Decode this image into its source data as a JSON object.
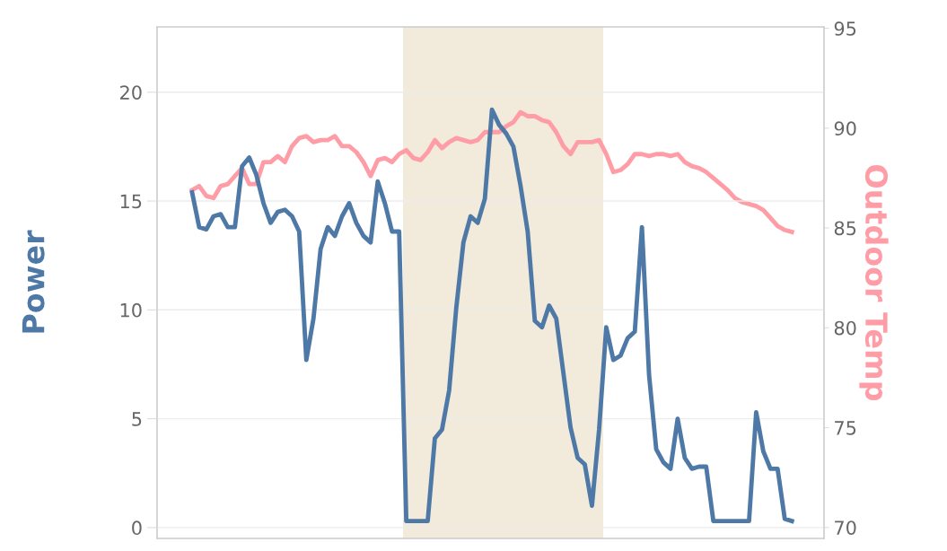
{
  "chart_data": {
    "type": "line",
    "ylabel": "Power",
    "y2label": "Outdoor Temp",
    "categories": [
      null,
      null,
      null,
      null,
      null,
      null,
      null,
      null,
      null,
      null,
      null,
      null,
      null,
      null,
      null,
      null,
      null,
      null,
      null,
      null,
      null,
      null,
      null,
      null,
      null,
      null,
      null,
      null,
      null,
      null,
      null,
      null,
      null,
      null,
      null,
      null,
      null,
      null,
      null,
      null,
      null,
      null,
      null,
      null,
      null,
      null,
      null,
      null,
      null,
      null,
      null,
      null,
      null,
      null,
      null,
      null,
      null,
      null,
      null,
      null,
      null,
      null,
      null,
      null,
      null,
      null,
      null,
      null,
      null,
      null,
      null,
      null,
      null,
      null,
      null,
      null,
      null,
      null,
      null,
      null,
      null,
      null,
      null,
      null,
      null
    ],
    "series": [
      {
        "color": "#4e79a7",
        "values": [
          15.4,
          13.8,
          13.7,
          14.3,
          14.4,
          13.8,
          13.8,
          16.6,
          17.0,
          16.2,
          14.9,
          14.0,
          14.5,
          14.6,
          14.3,
          13.6,
          7.7,
          9.6,
          12.8,
          13.8,
          13.4,
          14.3,
          14.9,
          14.0,
          13.4,
          13.1,
          15.9,
          14.9,
          13.6,
          13.6,
          0.3,
          0.3,
          0.3,
          0.3,
          4.1,
          4.5,
          6.3,
          10.1,
          13.1,
          14.3,
          14.0,
          15.1,
          19.2,
          18.5,
          18.1,
          17.5,
          15.7,
          13.6,
          9.5,
          9.2,
          10.2,
          9.6,
          7.1,
          4.6,
          3.2,
          2.9,
          1.0,
          4.5,
          9.2,
          7.7,
          7.9,
          8.7,
          9.0,
          13.8,
          7.0,
          3.6,
          3.0,
          2.7,
          5.0,
          3.2,
          2.7,
          2.8,
          2.8,
          0.3,
          0.3,
          0.3,
          0.3,
          0.3,
          0.3,
          5.3,
          3.5,
          2.7,
          2.7,
          0.4,
          0.3
        ]
      },
      {
        "color": "#ff9da7",
        "axis": "y2",
        "values": [
          86.9,
          87.1,
          86.6,
          86.5,
          87.1,
          87.2,
          87.6,
          88.0,
          87.2,
          87.2,
          88.3,
          88.3,
          88.6,
          88.3,
          89.1,
          89.5,
          89.6,
          89.3,
          89.4,
          89.4,
          89.6,
          89.1,
          89.1,
          88.8,
          88.3,
          87.6,
          88.4,
          88.5,
          88.3,
          88.7,
          88.9,
          88.5,
          88.4,
          88.8,
          89.4,
          89.0,
          89.3,
          89.5,
          89.4,
          89.3,
          89.4,
          89.8,
          89.8,
          89.8,
          90.1,
          90.3,
          90.8,
          90.6,
          90.6,
          90.4,
          90.3,
          89.8,
          89.1,
          88.7,
          89.3,
          89.3,
          89.3,
          89.4,
          88.7,
          87.8,
          87.9,
          88.2,
          88.7,
          88.7,
          88.6,
          88.7,
          88.7,
          88.6,
          88.7,
          88.3,
          88.1,
          88.0,
          87.8,
          87.5,
          87.2,
          86.9,
          86.5,
          86.3,
          86.2,
          86.1,
          85.9,
          85.5,
          85.1,
          84.9,
          84.8
        ]
      }
    ],
    "ylim": [
      -0.5,
      23
    ],
    "yticks": [
      0,
      5,
      10,
      15,
      20
    ],
    "y2lim": [
      69.45,
      95.07
    ],
    "y2ticks": [
      70,
      75,
      80,
      85,
      90,
      95
    ],
    "grid": "y"
  }
}
